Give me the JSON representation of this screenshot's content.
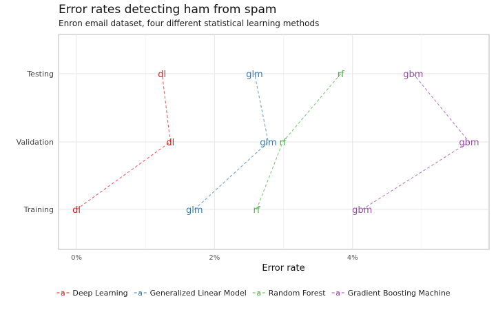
{
  "chart_data": {
    "type": "line",
    "title": "Error rates detecting ham from spam",
    "subtitle": "Enron email dataset, four different statistical learning methods",
    "xlabel": "Error rate",
    "ylabel": "",
    "y_categories": [
      "Training",
      "Validation",
      "Testing"
    ],
    "x_ticks": [
      0,
      0.02,
      0.04
    ],
    "x_tick_labels": [
      "0%",
      "2%",
      "4%"
    ],
    "xlim": [
      -0.0026,
      0.0598
    ],
    "grid": true,
    "legend_position": "bottom",
    "series": [
      {
        "name": "Deep Learning",
        "label": "dl",
        "color": "#e41a1c",
        "values": [
          {
            "set": "Training",
            "x": 0.0
          },
          {
            "set": "Validation",
            "x": 0.0136
          },
          {
            "set": "Testing",
            "x": 0.0124
          }
        ]
      },
      {
        "name": "Generalized Linear Model",
        "label": "glm",
        "color": "#377eb8",
        "values": [
          {
            "set": "Training",
            "x": 0.0171
          },
          {
            "set": "Validation",
            "x": 0.0278
          },
          {
            "set": "Testing",
            "x": 0.0258
          }
        ]
      },
      {
        "name": "Random Forest",
        "label": "rf",
        "color": "#4daf4a",
        "values": [
          {
            "set": "Training",
            "x": 0.0261
          },
          {
            "set": "Validation",
            "x": 0.0299
          },
          {
            "set": "Testing",
            "x": 0.0383
          }
        ]
      },
      {
        "name": "Gradient Boosting Machine",
        "label": "gbm",
        "color": "#984ea3",
        "values": [
          {
            "set": "Training",
            "x": 0.0414
          },
          {
            "set": "Validation",
            "x": 0.0569
          },
          {
            "set": "Testing",
            "x": 0.0488
          }
        ]
      }
    ]
  }
}
